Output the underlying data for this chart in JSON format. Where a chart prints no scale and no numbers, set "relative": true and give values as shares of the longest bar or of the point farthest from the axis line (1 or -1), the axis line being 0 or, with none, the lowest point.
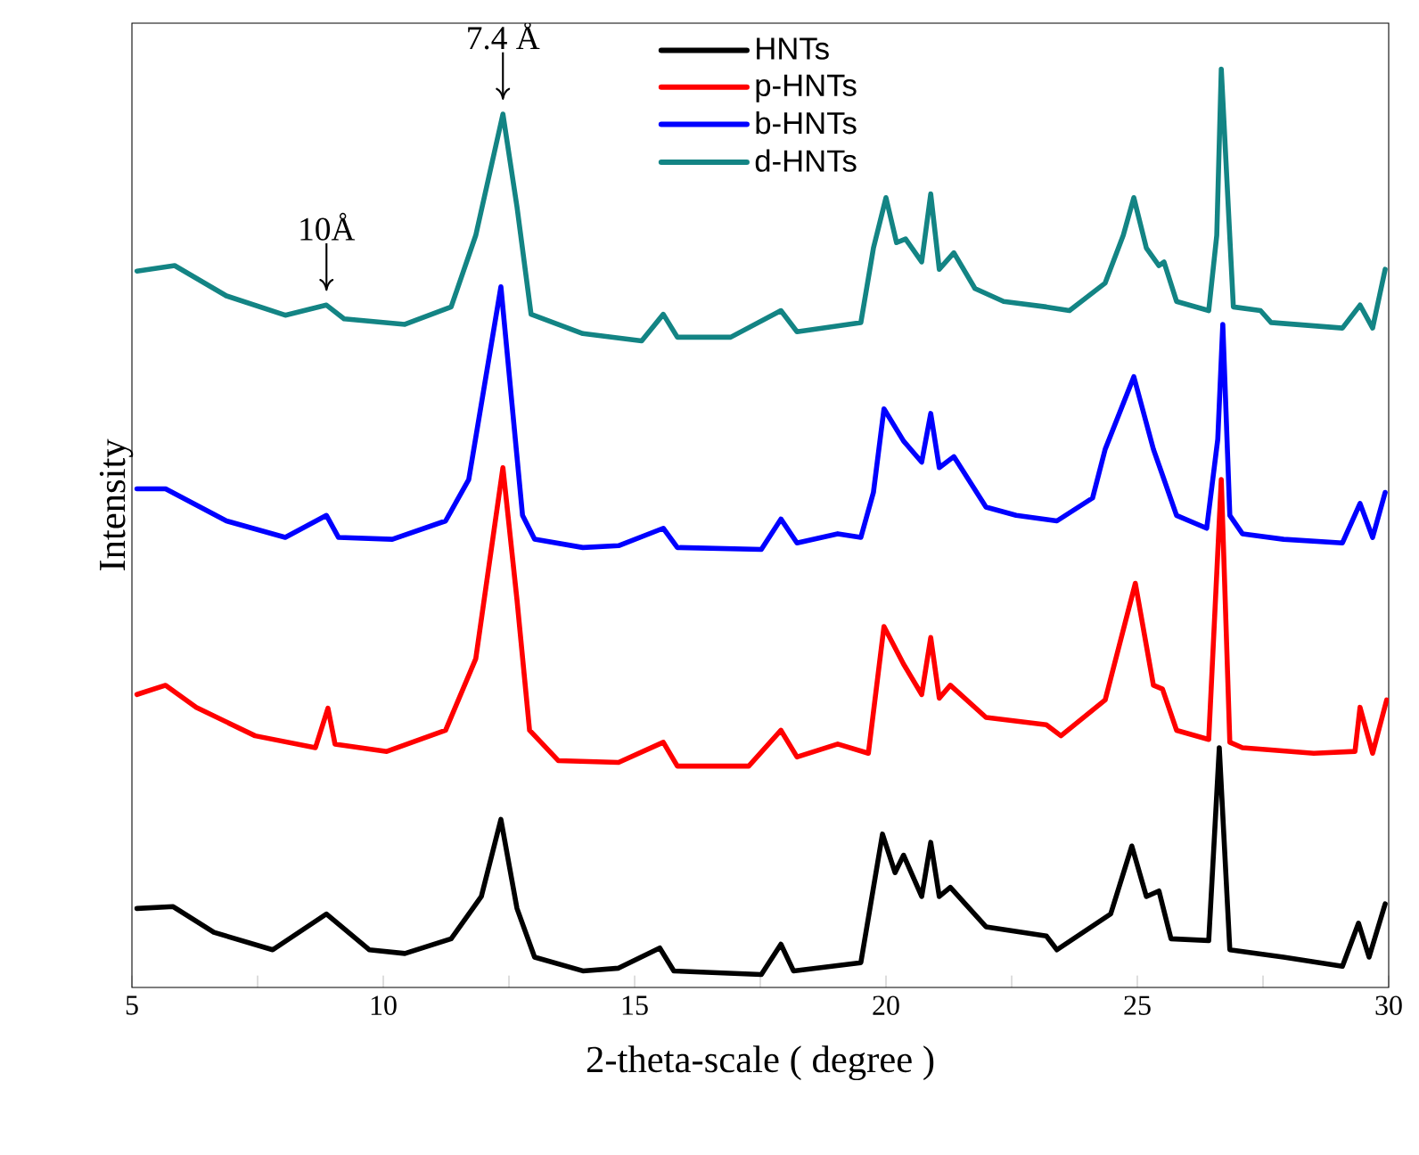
{
  "chart_data": {
    "type": "line",
    "relative": true,
    "xlabel": "2-theta-scale ( degree )",
    "ylabel": "Intensity",
    "xlim": [
      5,
      30
    ],
    "xticks": [
      5,
      {
        "value": 7.5,
        "label": null
      },
      10,
      {
        "value": 12.5,
        "label": null
      },
      15,
      {
        "value": 17.5,
        "label": null
      },
      20,
      {
        "value": 22.5,
        "label": null
      },
      25,
      {
        "value": 27.5,
        "label": null
      },
      30
    ],
    "tick_labels": "x",
    "legend": "top",
    "marker": "none",
    "annotations": [
      {
        "text": "10Å",
        "x": 8.87,
        "y": 0.743
      },
      {
        "text": "7.4 Å",
        "x": 12.38,
        "y": 0.951
      }
    ],
    "series": [
      {
        "name": "HNTs",
        "color": "#000000",
        "x": [
          5.1,
          5.82,
          6.63,
          7.8,
          8.87,
          9.72,
          10.43,
          11.35,
          11.95,
          12.34,
          12.66,
          13.01,
          13.97,
          14.68,
          15.5,
          15.78,
          17.52,
          17.91,
          18.16,
          19.5,
          19.93,
          20.18,
          20.35,
          20.71,
          20.89,
          21.06,
          21.28,
          21.99,
          23.19,
          23.4,
          24.47,
          24.89,
          25.18,
          25.43,
          25.67,
          26.42,
          26.63,
          26.84,
          27.91,
          29.08,
          29.4,
          29.61,
          29.93
        ],
        "values": [
          0.086,
          0.088,
          0.06,
          0.041,
          0.08,
          0.041,
          0.037,
          0.053,
          0.099,
          0.183,
          0.086,
          0.033,
          0.018,
          0.021,
          0.043,
          0.018,
          0.014,
          0.047,
          0.018,
          0.027,
          0.167,
          0.125,
          0.144,
          0.099,
          0.158,
          0.099,
          0.109,
          0.066,
          0.056,
          0.041,
          0.08,
          0.154,
          0.099,
          0.105,
          0.053,
          0.051,
          0.261,
          0.041,
          0.033,
          0.023,
          0.07,
          0.033,
          0.091
        ]
      },
      {
        "name": "p-HNTs",
        "color": "#ff0000",
        "x": [
          5.1,
          5.67,
          6.28,
          7.45,
          8.65,
          8.9,
          9.04,
          10.07,
          11.24,
          11.84,
          12.38,
          12.66,
          12.91,
          13.48,
          14.68,
          15.57,
          15.85,
          17.27,
          17.91,
          18.23,
          19.04,
          19.65,
          19.96,
          20.35,
          20.71,
          20.89,
          21.06,
          21.28,
          21.99,
          23.19,
          23.48,
          24.36,
          24.96,
          25.32,
          25.5,
          25.78,
          26.42,
          26.67,
          26.84,
          27.09,
          28.51,
          29.33,
          29.43,
          29.68,
          29.96
        ],
        "values": [
          0.319,
          0.329,
          0.305,
          0.274,
          0.261,
          0.304,
          0.265,
          0.257,
          0.28,
          0.358,
          0.566,
          0.422,
          0.28,
          0.247,
          0.245,
          0.267,
          0.241,
          0.241,
          0.28,
          0.251,
          0.265,
          0.255,
          0.393,
          0.352,
          0.319,
          0.381,
          0.315,
          0.329,
          0.294,
          0.286,
          0.274,
          0.313,
          0.44,
          0.329,
          0.325,
          0.28,
          0.27,
          0.553,
          0.267,
          0.261,
          0.255,
          0.257,
          0.305,
          0.255,
          0.313
        ]
      },
      {
        "name": "b-HNTs",
        "color": "#0000ff",
        "x": [
          5.1,
          5.67,
          6.88,
          8.05,
          8.87,
          9.11,
          10.18,
          11.24,
          11.7,
          12.34,
          12.77,
          13.01,
          13.97,
          14.68,
          15.57,
          15.85,
          17.52,
          17.91,
          18.23,
          19.04,
          19.5,
          19.75,
          19.96,
          20.35,
          20.71,
          20.89,
          21.06,
          21.35,
          21.99,
          22.59,
          23.4,
          24.11,
          24.36,
          24.93,
          25.32,
          25.5,
          25.78,
          26.38,
          26.6,
          26.7,
          26.84,
          27.09,
          27.91,
          29.08,
          29.43,
          29.68,
          29.93
        ],
        "values": [
          0.543,
          0.543,
          0.508,
          0.49,
          0.514,
          0.49,
          0.488,
          0.508,
          0.553,
          0.763,
          0.514,
          0.488,
          0.479,
          0.481,
          0.5,
          0.479,
          0.477,
          0.51,
          0.484,
          0.494,
          0.49,
          0.539,
          0.63,
          0.595,
          0.572,
          0.625,
          0.566,
          0.578,
          0.523,
          0.514,
          0.508,
          0.533,
          0.586,
          0.665,
          0.586,
          0.558,
          0.514,
          0.5,
          0.597,
          0.722,
          0.514,
          0.494,
          0.488,
          0.484,
          0.527,
          0.49,
          0.539
        ]
      },
      {
        "name": "d-HNTs",
        "color": "#138484",
        "x": [
          5.1,
          5.85,
          6.88,
          8.05,
          8.87,
          9.22,
          10.43,
          11.35,
          11.84,
          12.38,
          12.66,
          12.94,
          13.97,
          15.14,
          15.57,
          15.85,
          16.91,
          17.91,
          18.23,
          19.5,
          19.75,
          20.0,
          20.21,
          20.39,
          20.71,
          20.89,
          21.06,
          21.35,
          21.77,
          22.34,
          23.19,
          23.65,
          24.36,
          24.72,
          24.93,
          25.18,
          25.43,
          25.53,
          25.78,
          26.42,
          26.58,
          26.67,
          26.91,
          27.45,
          27.66,
          29.08,
          29.43,
          29.68,
          29.93
        ],
        "values": [
          0.78,
          0.786,
          0.753,
          0.732,
          0.743,
          0.728,
          0.722,
          0.741,
          0.819,
          0.951,
          0.85,
          0.733,
          0.712,
          0.704,
          0.733,
          0.708,
          0.708,
          0.737,
          0.714,
          0.724,
          0.805,
          0.86,
          0.811,
          0.815,
          0.79,
          0.864,
          0.782,
          0.8,
          0.761,
          0.747,
          0.741,
          0.737,
          0.767,
          0.819,
          0.86,
          0.805,
          0.786,
          0.79,
          0.747,
          0.737,
          0.819,
          1.0,
          0.741,
          0.737,
          0.724,
          0.718,
          0.743,
          0.718,
          0.782
        ]
      }
    ]
  }
}
